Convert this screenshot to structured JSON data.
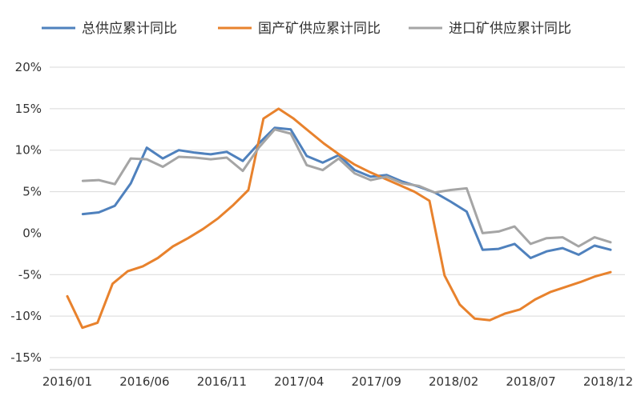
{
  "chart_data": {
    "type": "line",
    "title": "",
    "xlabel": "",
    "ylabel": "",
    "ylim": [
      -15,
      20
    ],
    "yticks": [
      -15,
      -10,
      -5,
      0,
      5,
      10,
      15,
      20
    ],
    "ytick_labels": [
      "-15%",
      "-10%",
      "-5%",
      "0%",
      "5%",
      "10%",
      "15%",
      "20%"
    ],
    "xtick_labels": [
      "2016/01",
      "2016/06",
      "2016/11",
      "2017/04",
      "2017/09",
      "2018/02",
      "2018/07",
      "2018/12"
    ],
    "legend_position": "top",
    "grid": "horizontal",
    "series": [
      {
        "name": "总供应累计同比",
        "color": "#4f81bd",
        "values": [
          2.3,
          2.5,
          3.3,
          6.0,
          10.3,
          9.0,
          10.0,
          9.7,
          9.5,
          9.8,
          8.7,
          10.8,
          12.7,
          12.5,
          9.3,
          8.5,
          9.4,
          7.6,
          6.8,
          7.0,
          6.2,
          5.6,
          4.9,
          3.8,
          2.6,
          -2.0,
          -1.9,
          -1.3,
          -3.0,
          -2.2,
          -1.8,
          -2.6,
          -1.5,
          -2.0
        ]
      },
      {
        "name": "国产矿供应累计同比",
        "color": "#e8822d",
        "values": [
          -7.6,
          -11.4,
          -10.8,
          -6.1,
          -4.6,
          -4.0,
          -3.0,
          -1.6,
          -0.6,
          0.5,
          1.8,
          3.4,
          5.2,
          13.8,
          15.0,
          13.8,
          12.3,
          10.8,
          9.5,
          8.3,
          7.4,
          6.6,
          5.8,
          5.0,
          3.9,
          -5.1,
          -8.6,
          -10.3,
          -10.5,
          -9.7,
          -9.2,
          -8.0,
          -7.1,
          -6.5,
          -5.9,
          -5.2,
          -4.7
        ]
      },
      {
        "name": "进口矿供应累计同比",
        "color": "#a5a5a5",
        "values": [
          6.3,
          6.4,
          5.9,
          9.0,
          8.9,
          8.0,
          9.2,
          9.1,
          8.9,
          9.1,
          7.5,
          10.3,
          12.5,
          12.0,
          8.2,
          7.6,
          9.0,
          7.2,
          6.4,
          6.8,
          6.0,
          5.7,
          4.9,
          5.2,
          5.4,
          0.0,
          0.2,
          0.8,
          -1.3,
          -0.6,
          -0.5,
          -1.6,
          -0.5,
          -1.1
        ]
      }
    ]
  }
}
